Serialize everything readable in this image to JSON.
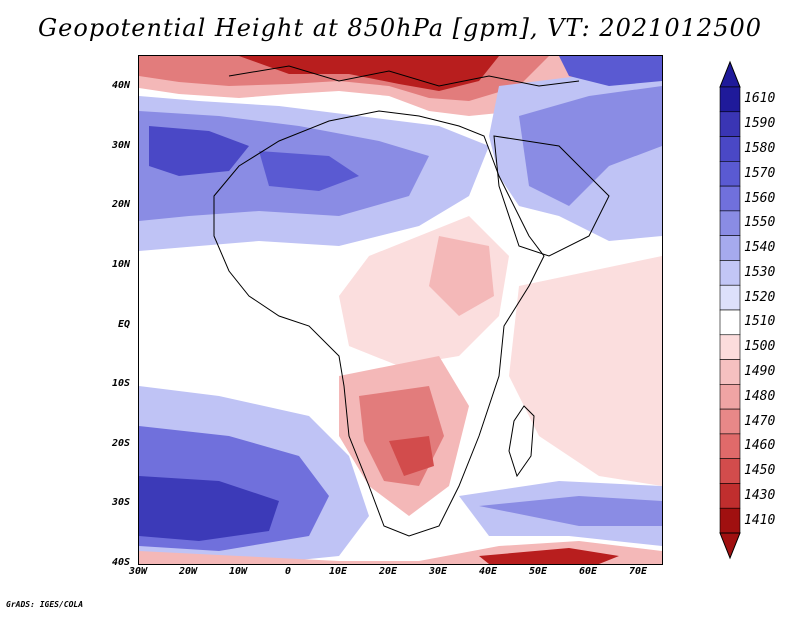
{
  "title": "Geopotential Height at 850hPa [gpm], VT: 2021012500",
  "footer": "GrADS: IGES/COLA",
  "y_axis_labels": [
    "40N",
    "30N",
    "20N",
    "10N",
    "EQ",
    "10S",
    "20S",
    "30S",
    "40S"
  ],
  "x_axis_labels": [
    "30W",
    "20W",
    "10W",
    "0",
    "10E",
    "20E",
    "30E",
    "40E",
    "50E",
    "60E",
    "70E"
  ],
  "colorbar": {
    "levels": [
      "1610",
      "1590",
      "1580",
      "1570",
      "1560",
      "1550",
      "1540",
      "1530",
      "1520",
      "1510",
      "1500",
      "1490",
      "1480",
      "1470",
      "1460",
      "1450",
      "1430",
      "1410"
    ],
    "colors": [
      "#1f1a9a",
      "#3a35b4",
      "#4a48c6",
      "#5a5ad2",
      "#7070dc",
      "#8a8ce4",
      "#a6aaee",
      "#c2c6f6",
      "#dde0fb",
      "#ffffff",
      "#fcdcdc",
      "#f6c0c0",
      "#f0a4a4",
      "#e88888",
      "#e06a6a",
      "#d24c4c",
      "#c02e2e",
      "#a01010"
    ]
  },
  "map_colors": {
    "ocean_blue_strong": "#3c3ab8",
    "blue_mid": "#6f70da",
    "blue_light": "#bfc3f5",
    "blue_pale": "#dfe2fb",
    "white": "#ffffff",
    "pink_pale": "#fbdede",
    "pink": "#f4b8b8",
    "red_mid": "#e27c7c",
    "red_dark": "#b81e1e"
  }
}
